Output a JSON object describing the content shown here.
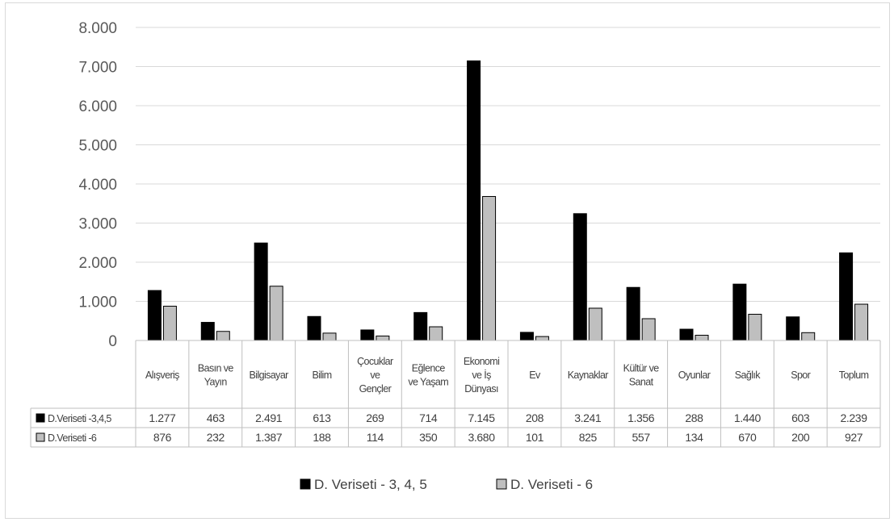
{
  "chart_data": {
    "type": "bar",
    "categories": [
      "Alışveriş",
      "Basın ve Yayın",
      "Bilgisayar",
      "Bilim",
      "Çocuklar ve Gençler",
      "Eğlence ve Yaşam",
      "Ekonomi ve İş Dünyası",
      "Ev",
      "Kaynaklar",
      "Kültür ve Sanat",
      "Oyunlar",
      "Sağlık",
      "Spor",
      "Toplum"
    ],
    "category_lines": [
      [
        "Alışveriş"
      ],
      [
        "Basın ve",
        "Yayın"
      ],
      [
        "Bilgisayar"
      ],
      [
        "Bilim"
      ],
      [
        "Çocuklar",
        "ve",
        "Gençler"
      ],
      [
        "Eğlence",
        "ve Yaşam"
      ],
      [
        "Ekonomi",
        "ve İş",
        "Dünyası"
      ],
      [
        "Ev"
      ],
      [
        "Kaynaklar"
      ],
      [
        "Kültür ve",
        "Sanat"
      ],
      [
        "Oyunlar"
      ],
      [
        "Sağlık"
      ],
      [
        "Spor"
      ],
      [
        "Toplum"
      ]
    ],
    "series": [
      {
        "name": "D. Veriseti - 3, 4, 5",
        "table_label": "D.Veriseti -3,4,5",
        "color": "#000000",
        "values": [
          1277,
          463,
          2491,
          613,
          269,
          714,
          7145,
          208,
          3241,
          1356,
          288,
          1440,
          603,
          2239
        ],
        "labels": [
          "1.277",
          "463",
          "2.491",
          "613",
          "269",
          "714",
          "7.145",
          "208",
          "3.241",
          "1.356",
          "288",
          "1.440",
          "603",
          "2.239"
        ]
      },
      {
        "name": "D. Veriseti - 6",
        "table_label": "D.Veriseti -6",
        "color": "#bfbfbf",
        "values": [
          876,
          232,
          1387,
          188,
          114,
          350,
          3680,
          101,
          825,
          557,
          134,
          670,
          200,
          927
        ],
        "labels": [
          "876",
          "232",
          "1.387",
          "188",
          "114",
          "350",
          "3.680",
          "101",
          "825",
          "557",
          "134",
          "670",
          "200",
          "927"
        ]
      }
    ],
    "y_ticks": [
      {
        "value": 0,
        "label": "0"
      },
      {
        "value": 1000,
        "label": "1.000"
      },
      {
        "value": 2000,
        "label": "2.000"
      },
      {
        "value": 3000,
        "label": "3.000"
      },
      {
        "value": 4000,
        "label": "4.000"
      },
      {
        "value": 5000,
        "label": "5.000"
      },
      {
        "value": 6000,
        "label": "6.000"
      },
      {
        "value": 7000,
        "label": "7.000"
      },
      {
        "value": 8000,
        "label": "8.000"
      }
    ],
    "ylim": [
      0,
      8000
    ],
    "grid": true,
    "legend_position": "bottom",
    "data_table": true
  }
}
